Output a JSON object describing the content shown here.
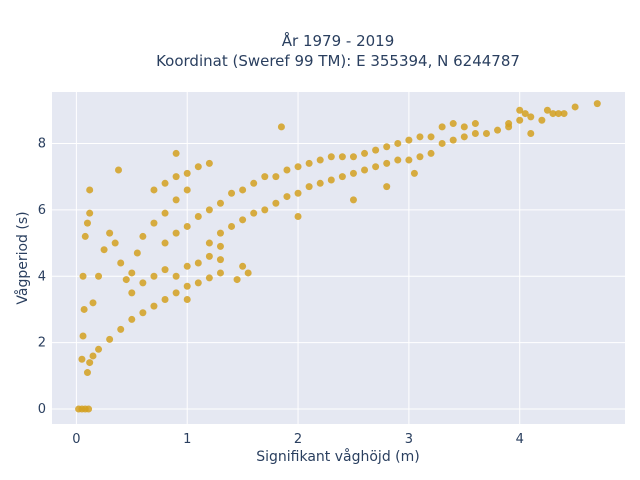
{
  "chart_data": {
    "type": "scatter",
    "title_line1": "År 1979 - 2019",
    "title_line2": "Koordinat (Sweref 99 TM): E 355394, N 6244787",
    "xlabel": "Signifikant våghöjd (m)",
    "ylabel": "Vågperiod (s)",
    "xlim": [
      -0.22,
      4.95
    ],
    "ylim": [
      -0.45,
      9.55
    ],
    "xticks": [
      0,
      1,
      2,
      3,
      4
    ],
    "yticks": [
      0,
      2,
      4,
      6,
      8
    ],
    "grid": true,
    "point_color": "#d4a020",
    "background_color": "#e5e8f2",
    "series": [
      {
        "values": [
          [
            0.02,
            0.0
          ],
          [
            0.05,
            0.0
          ],
          [
            0.08,
            0.0
          ],
          [
            0.11,
            0.0
          ],
          [
            0.05,
            1.5
          ],
          [
            0.06,
            2.2
          ],
          [
            0.07,
            3.0
          ],
          [
            0.06,
            4.0
          ],
          [
            0.08,
            5.2
          ],
          [
            0.1,
            5.6
          ],
          [
            0.12,
            5.9
          ],
          [
            0.1,
            1.1
          ],
          [
            0.12,
            1.4
          ],
          [
            0.15,
            1.6
          ],
          [
            0.2,
            1.8
          ],
          [
            0.3,
            2.1
          ],
          [
            0.4,
            2.4
          ],
          [
            0.5,
            2.7
          ],
          [
            0.6,
            2.9
          ],
          [
            0.7,
            3.1
          ],
          [
            0.8,
            3.3
          ],
          [
            0.9,
            3.5
          ],
          [
            1.0,
            3.7
          ],
          [
            1.1,
            3.8
          ],
          [
            1.2,
            3.95
          ],
          [
            1.3,
            4.1
          ],
          [
            1.5,
            4.3
          ],
          [
            0.15,
            3.2
          ],
          [
            0.2,
            4.0
          ],
          [
            0.25,
            4.8
          ],
          [
            0.3,
            5.3
          ],
          [
            0.35,
            5.0
          ],
          [
            0.4,
            4.4
          ],
          [
            0.45,
            3.9
          ],
          [
            0.5,
            4.1
          ],
          [
            0.55,
            4.7
          ],
          [
            0.6,
            5.2
          ],
          [
            0.7,
            5.6
          ],
          [
            0.8,
            5.9
          ],
          [
            0.9,
            6.3
          ],
          [
            1.0,
            6.6
          ],
          [
            0.5,
            3.5
          ],
          [
            0.6,
            3.8
          ],
          [
            0.7,
            4.0
          ],
          [
            0.8,
            4.2
          ],
          [
            0.9,
            4.0
          ],
          [
            1.0,
            4.3
          ],
          [
            1.1,
            4.4
          ],
          [
            1.2,
            4.6
          ],
          [
            1.3,
            4.5
          ],
          [
            0.8,
            5.0
          ],
          [
            0.9,
            5.3
          ],
          [
            1.0,
            5.5
          ],
          [
            1.1,
            5.8
          ],
          [
            1.2,
            6.0
          ],
          [
            1.3,
            6.2
          ],
          [
            1.4,
            6.5
          ],
          [
            1.5,
            6.6
          ],
          [
            1.6,
            6.8
          ],
          [
            1.7,
            7.0
          ],
          [
            0.7,
            6.6
          ],
          [
            0.8,
            6.8
          ],
          [
            0.9,
            7.0
          ],
          [
            1.0,
            7.1
          ],
          [
            1.1,
            7.3
          ],
          [
            1.2,
            7.4
          ],
          [
            1.2,
            5.0
          ],
          [
            1.3,
            5.3
          ],
          [
            1.4,
            5.5
          ],
          [
            1.5,
            5.7
          ],
          [
            1.6,
            5.9
          ],
          [
            1.7,
            6.0
          ],
          [
            1.8,
            6.2
          ],
          [
            1.9,
            6.4
          ],
          [
            2.0,
            6.5
          ],
          [
            2.1,
            6.7
          ],
          [
            2.2,
            6.8
          ],
          [
            1.8,
            7.0
          ],
          [
            1.9,
            7.2
          ],
          [
            2.0,
            7.3
          ],
          [
            2.1,
            7.4
          ],
          [
            2.2,
            7.5
          ],
          [
            2.3,
            7.6
          ],
          [
            2.4,
            7.6
          ],
          [
            2.3,
            6.9
          ],
          [
            2.4,
            7.0
          ],
          [
            2.5,
            7.1
          ],
          [
            2.6,
            7.2
          ],
          [
            2.7,
            7.3
          ],
          [
            2.8,
            7.4
          ],
          [
            2.9,
            7.5
          ],
          [
            3.0,
            7.5
          ],
          [
            3.1,
            7.6
          ],
          [
            3.2,
            7.7
          ],
          [
            2.5,
            7.6
          ],
          [
            2.6,
            7.7
          ],
          [
            2.7,
            7.8
          ],
          [
            2.8,
            7.9
          ],
          [
            2.9,
            8.0
          ],
          [
            3.0,
            8.1
          ],
          [
            3.1,
            8.2
          ],
          [
            3.2,
            8.2
          ],
          [
            3.3,
            8.0
          ],
          [
            3.4,
            8.1
          ],
          [
            3.5,
            8.2
          ],
          [
            3.6,
            8.3
          ],
          [
            3.7,
            8.3
          ],
          [
            3.8,
            8.4
          ],
          [
            3.9,
            8.5
          ],
          [
            3.3,
            8.5
          ],
          [
            3.4,
            8.6
          ],
          [
            3.5,
            8.5
          ],
          [
            3.6,
            8.6
          ],
          [
            3.9,
            8.6
          ],
          [
            4.0,
            8.7
          ],
          [
            4.1,
            8.8
          ],
          [
            4.2,
            8.7
          ],
          [
            4.3,
            8.9
          ],
          [
            4.35,
            8.9
          ],
          [
            4.4,
            8.9
          ],
          [
            4.0,
            9.0
          ],
          [
            4.05,
            8.9
          ],
          [
            4.1,
            8.3
          ],
          [
            4.25,
            9.0
          ],
          [
            4.5,
            9.1
          ],
          [
            4.7,
            9.2
          ],
          [
            0.12,
            6.6
          ],
          [
            0.38,
            7.2
          ],
          [
            0.9,
            7.7
          ],
          [
            1.85,
            8.5
          ],
          [
            1.0,
            3.3
          ],
          [
            1.3,
            4.9
          ],
          [
            1.55,
            4.1
          ],
          [
            1.45,
            3.9
          ],
          [
            2.5,
            6.3
          ],
          [
            2.0,
            5.8
          ],
          [
            3.05,
            7.1
          ],
          [
            2.8,
            6.7
          ]
        ]
      }
    ]
  }
}
